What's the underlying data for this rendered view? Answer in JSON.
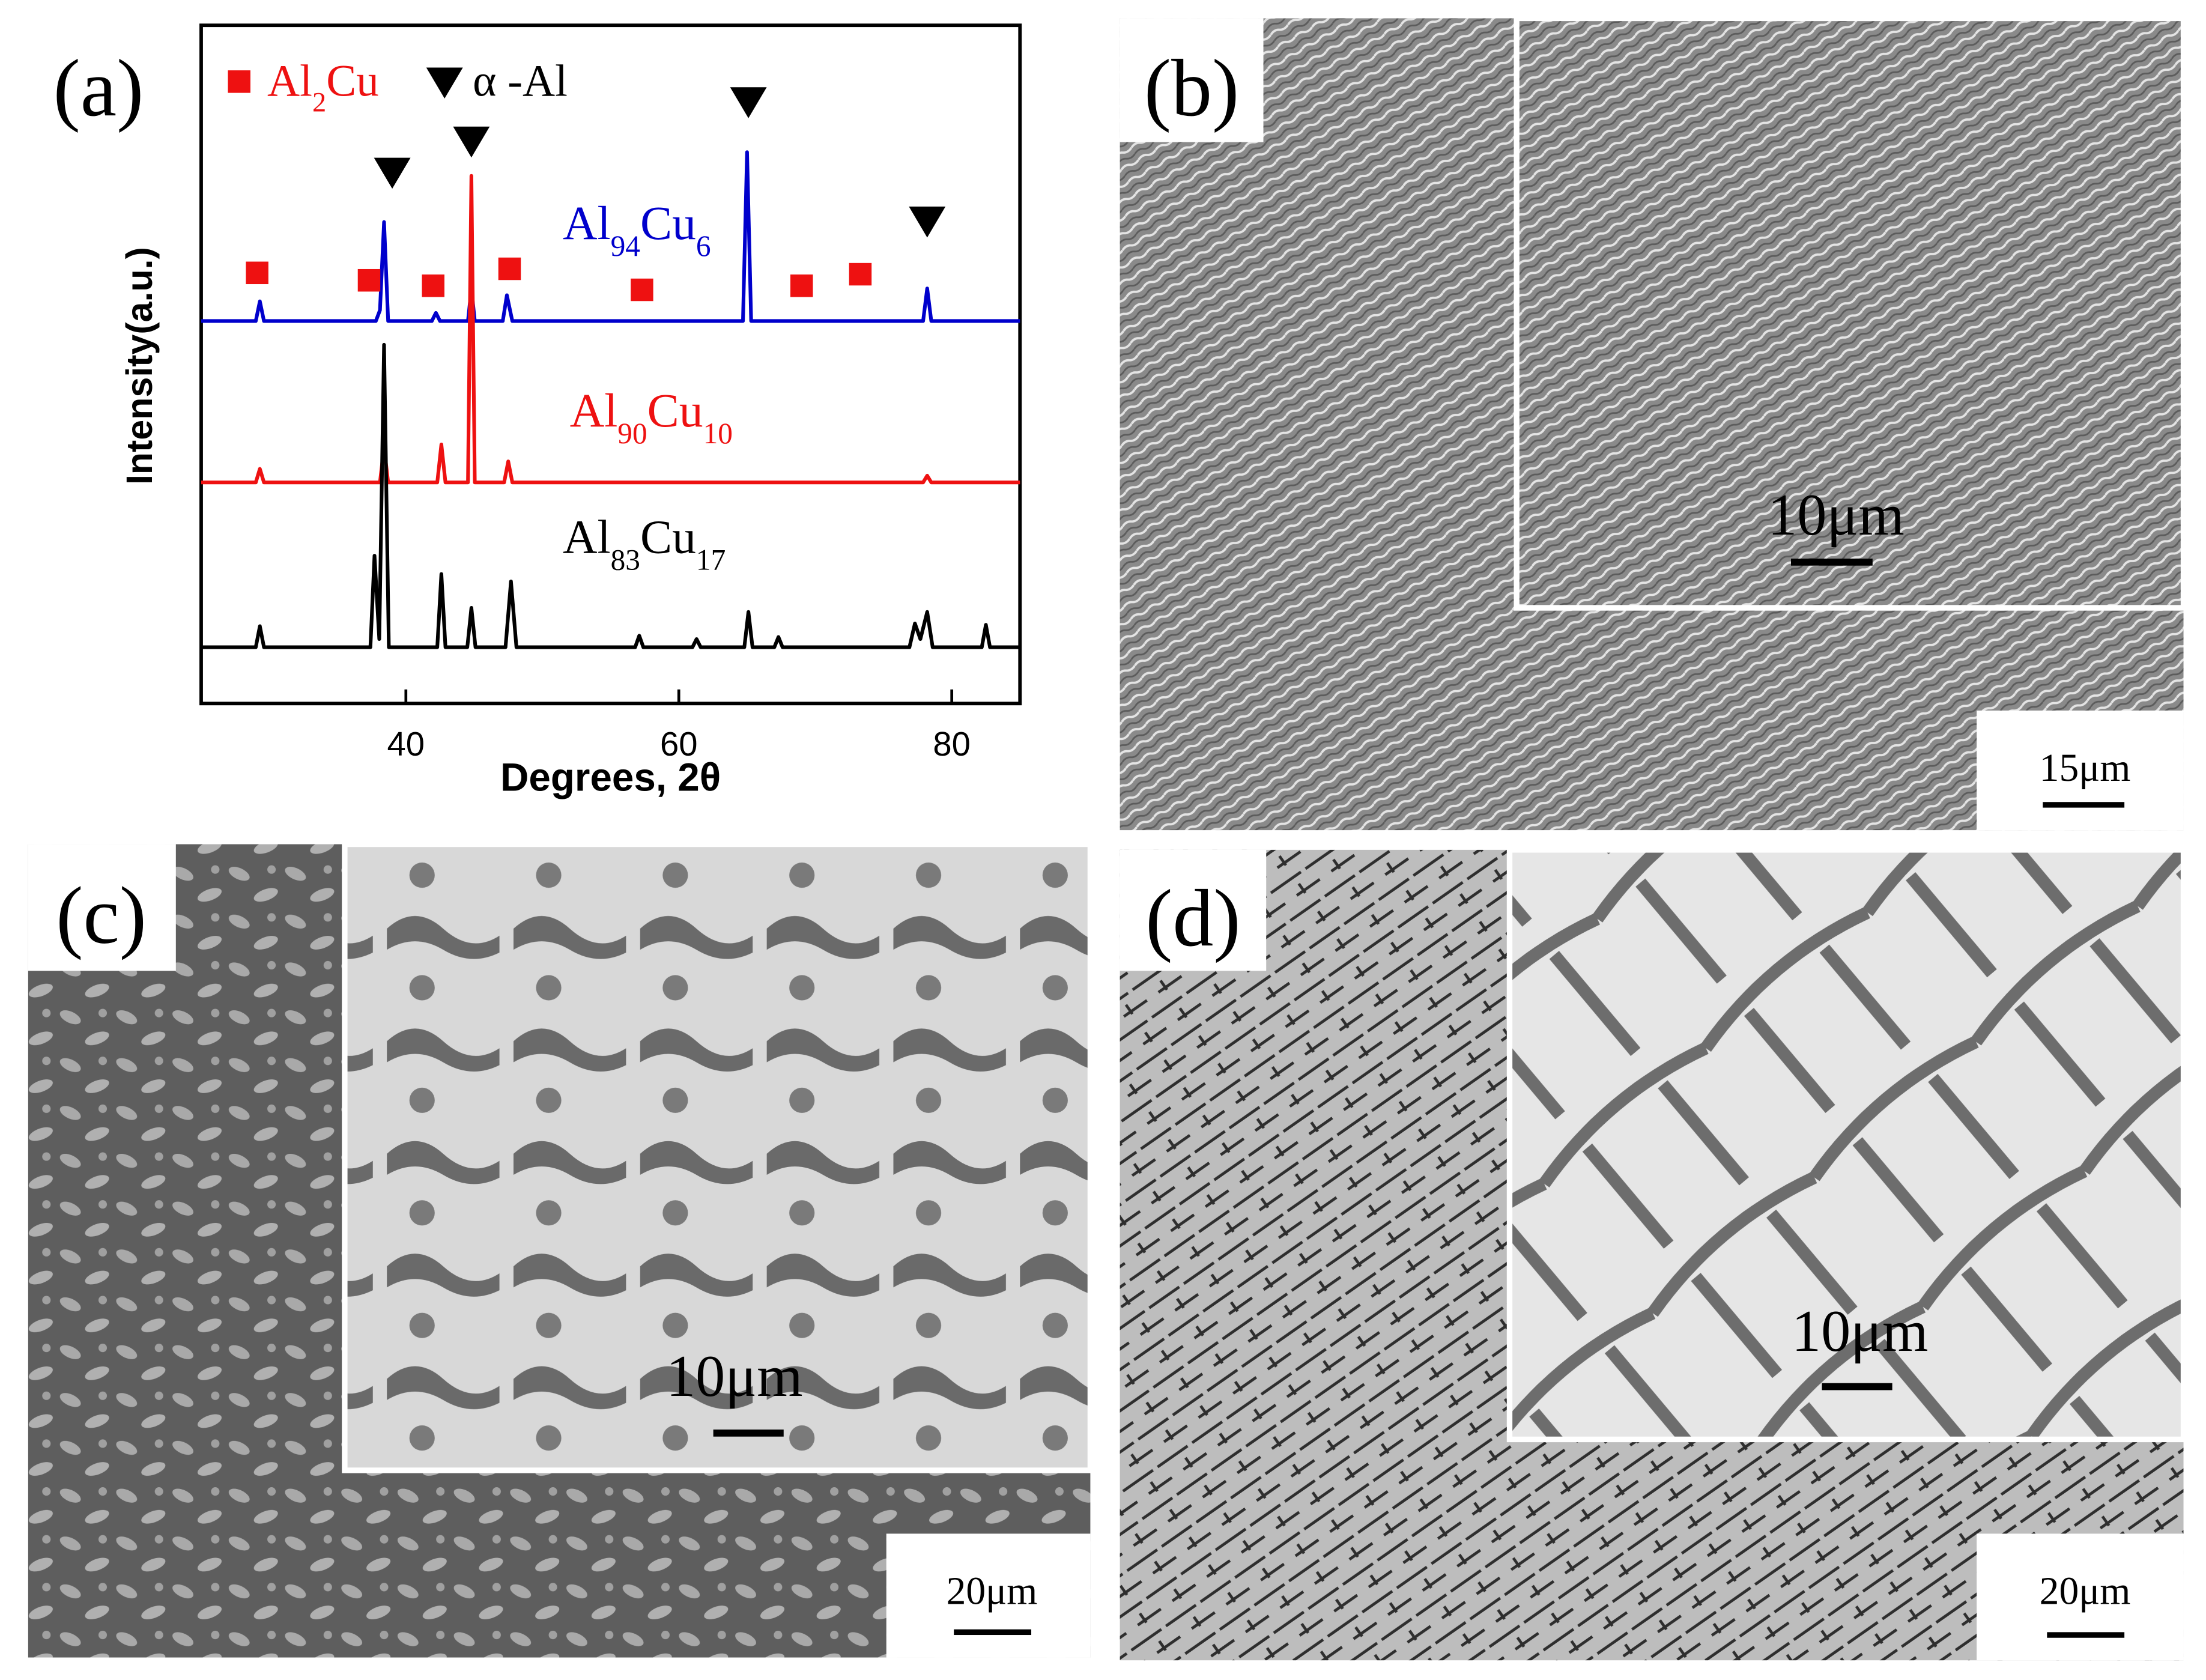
{
  "chart_data": {
    "type": "line",
    "panel_label": "(a)",
    "x_label": "Degrees, 2θ",
    "y_label": "Intensity(a.u.)",
    "xlim": [
      25,
      85
    ],
    "xticks": [
      40,
      60,
      80
    ],
    "ylim": [
      0,
      100
    ],
    "series": [
      {
        "label_parts": [
          "Al",
          "94",
          "Cu",
          "6"
        ],
        "color": "#0000cc",
        "x": [
          25,
          29.0,
          29.3,
          29.6,
          37.8,
          38.1,
          38.4,
          38.7,
          41.9,
          42.2,
          42.5,
          44.55,
          44.8,
          45.05,
          47.1,
          47.4,
          47.8,
          64.7,
          65.0,
          65.3,
          77.9,
          78.2,
          78.5,
          85
        ],
        "values": [
          56.4,
          56.4,
          59.3,
          56.4,
          56.4,
          58,
          71,
          56.4,
          56.4,
          57.6,
          56.4,
          56.4,
          61.2,
          56.4,
          56.4,
          60.2,
          56.4,
          56.4,
          81.3,
          56.4,
          56.4,
          61.2,
          56.4,
          56.4
        ]
      },
      {
        "label_parts": [
          "Al",
          "90",
          "Cu",
          "10"
        ],
        "color": "#ee1111",
        "x": [
          25,
          29.0,
          29.3,
          29.6,
          38.1,
          38.4,
          38.7,
          42.3,
          42.6,
          42.9,
          44.55,
          44.8,
          45.05,
          47.2,
          47.5,
          47.8,
          77.9,
          78.2,
          78.5,
          85
        ],
        "values": [
          32.6,
          32.6,
          34.6,
          32.6,
          32.6,
          37.8,
          32.6,
          32.6,
          38.2,
          32.6,
          32.6,
          77.8,
          32.6,
          32.6,
          35.7,
          32.6,
          32.6,
          33.6,
          32.6,
          32.6
        ]
      },
      {
        "label_parts": [
          "Al",
          "83",
          "Cu",
          "17"
        ],
        "color": "#000000",
        "x": [
          25,
          29.0,
          29.3,
          29.6,
          37.4,
          37.7,
          38.05,
          38.4,
          38.75,
          42.3,
          42.6,
          42.9,
          44.5,
          44.8,
          45.1,
          47.3,
          47.7,
          48.1,
          56.8,
          57.1,
          57.4,
          61.0,
          61.3,
          61.6,
          64.8,
          65.1,
          65.4,
          67.0,
          67.3,
          67.6,
          76.9,
          77.3,
          77.7,
          78.2,
          78.6,
          82.2,
          82.5,
          82.8,
          85
        ],
        "values": [
          8.3,
          8.3,
          11.4,
          8.3,
          8.3,
          21.8,
          9.5,
          52.9,
          8.3,
          8.3,
          19.1,
          8.3,
          8.3,
          14.1,
          8.3,
          8.3,
          18,
          8.3,
          8.3,
          10,
          8.3,
          8.3,
          9.5,
          8.3,
          8.3,
          13.5,
          8.3,
          8.3,
          9.8,
          8.3,
          8.3,
          11.8,
          9.5,
          13.5,
          8.3,
          8.3,
          11.6,
          8.3,
          8.3
        ]
      }
    ],
    "markers": [
      {
        "label_parts": [
          "Al",
          "2",
          "Cu"
        ],
        "shape": "square",
        "color": "#ee1111",
        "x": [
          29.1,
          37.3,
          42.0,
          47.6,
          57.3,
          69.0,
          73.3
        ],
        "values": [
          63.5,
          62.4,
          61.6,
          64.1,
          61.0,
          61.6,
          63.3
        ]
      },
      {
        "label_parts": [
          "α -Al"
        ],
        "shape": "triangle",
        "color": "#000000",
        "x": [
          39.0,
          44.8,
          65.1,
          78.2
        ],
        "values": [
          78.4,
          83.0,
          88.8,
          71.2
        ]
      }
    ]
  },
  "micrographs": [
    {
      "label": "(b)",
      "scale_bar": "15μm",
      "inset_scale_bar": "10μm"
    },
    {
      "label": "(c)",
      "scale_bar": "20μm",
      "inset_scale_bar": "10μm"
    },
    {
      "label": "(d)",
      "scale_bar": "20μm",
      "inset_scale_bar": "10μm"
    }
  ]
}
